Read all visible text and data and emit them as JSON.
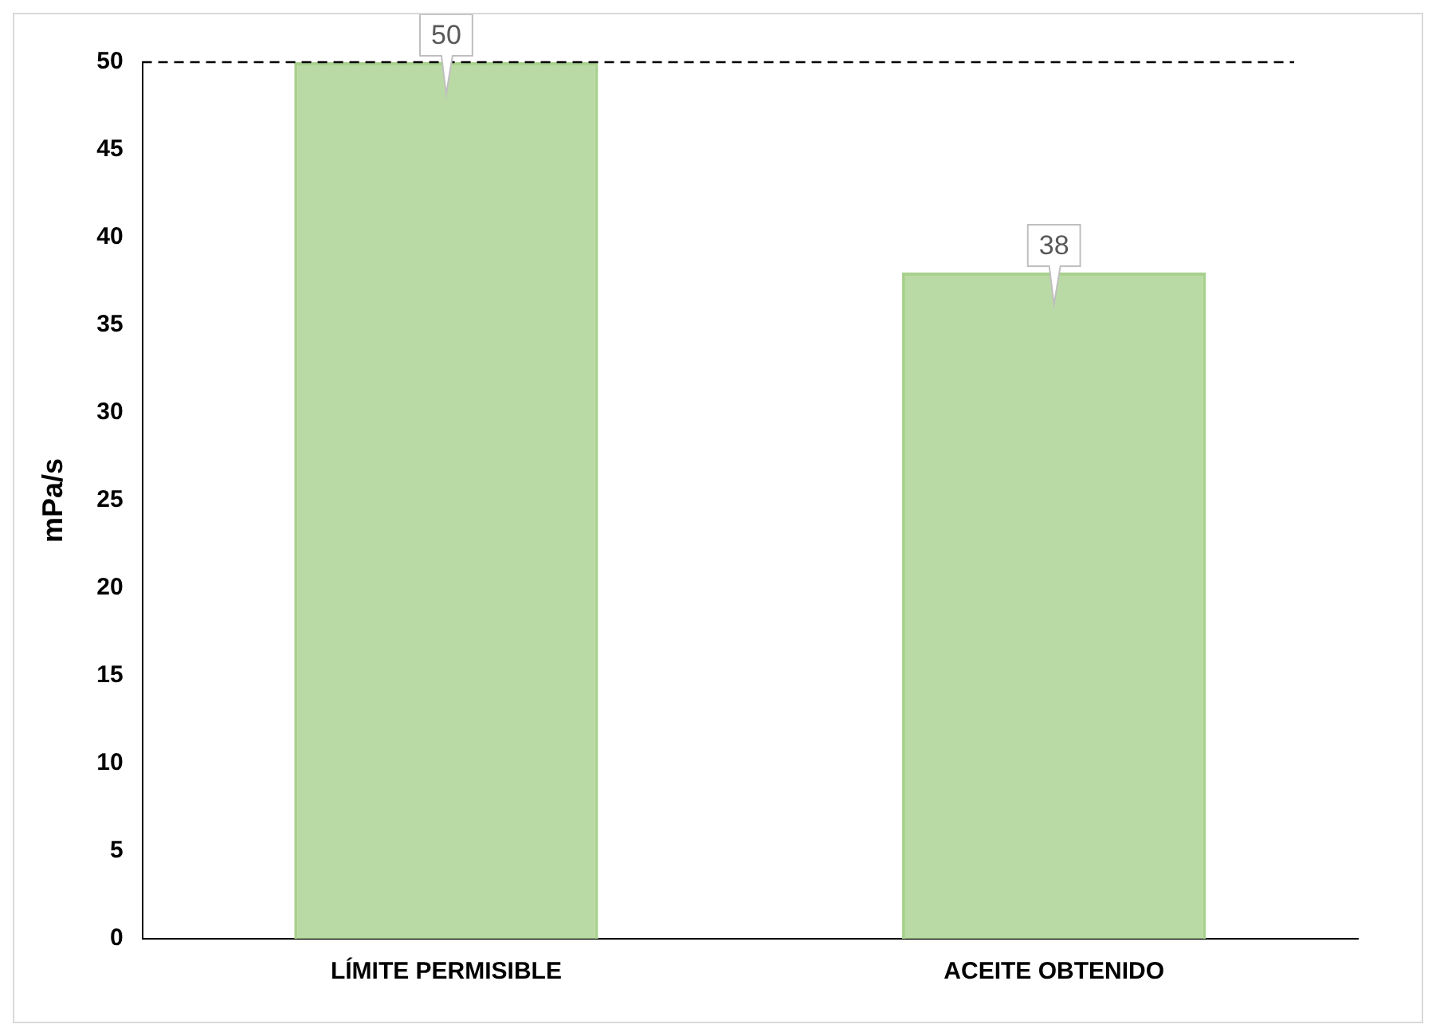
{
  "chart_data": {
    "type": "bar",
    "ylabel": "mPa/s",
    "categories": [
      "LÍMITE PERMISIBLE",
      "ACEITE OBTENIDO"
    ],
    "values": [
      50,
      38
    ],
    "color": "#a9d18e",
    "ylim": [
      0,
      50
    ],
    "yticks": [
      0,
      5,
      10,
      15,
      20,
      25,
      30,
      35,
      40,
      45,
      50
    ],
    "grid": false,
    "legend": false,
    "data_labels": true,
    "ref_lines": [
      {
        "axis": "y",
        "value": 50,
        "color": "#000000",
        "line_style": "dashed"
      }
    ]
  }
}
